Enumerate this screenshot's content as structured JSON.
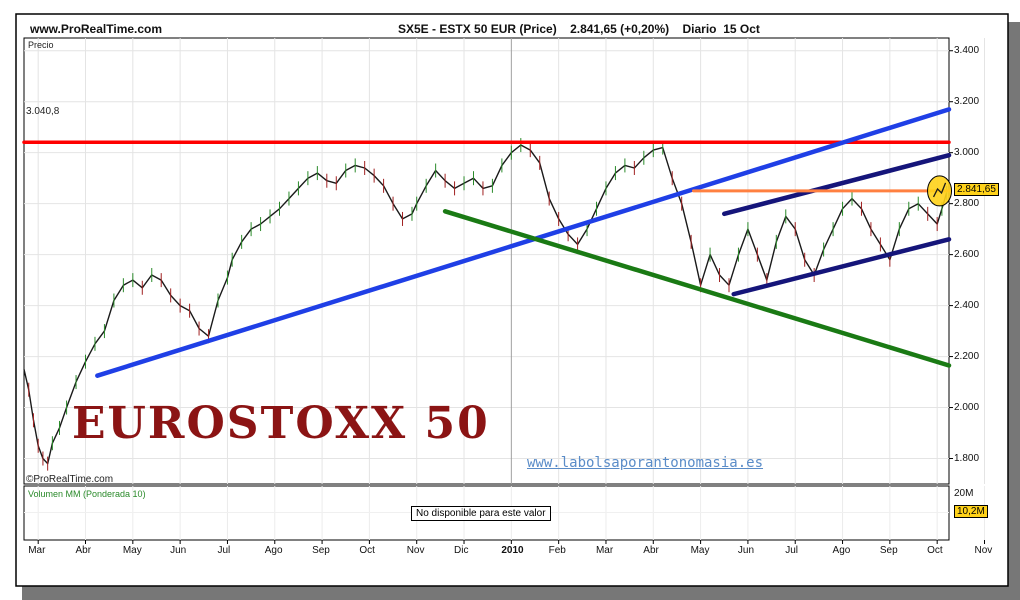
{
  "header": {
    "site": "www.ProRealTime.com",
    "instrument": "SX5E - ESTX 50 EUR (Price)",
    "price_change": "2.841,65 (+0,20%)",
    "timeframe": "Diario",
    "date": "15 Oct"
  },
  "price_panel": {
    "label": "Precio",
    "source_credit": "ProRealTime.com",
    "resistance_label": "3.040,8",
    "last_price_label": "2.841,65"
  },
  "volume_panel": {
    "label": "Volumen MM (Ponderada 10)",
    "not_available": "No disponible para este valor",
    "axis_label": "20M",
    "value_label": "10,2M"
  },
  "overlay": {
    "title": "EUROSTOXX 50",
    "watermark": "www.labolsaporantonomasia.es"
  },
  "colors": {
    "resistance": "#ff0000",
    "uptrend": "#1f3fe6",
    "channel": "#15157a",
    "downtrend": "#1a7a14",
    "level": "#ff8040",
    "highlight": "#ffd21a"
  },
  "chart_data": {
    "type": "line",
    "title": "SX5E - ESTX 50 EUR (Price)",
    "ylabel": "Precio",
    "ylim": [
      1700,
      3450
    ],
    "y_ticks": [
      "3.400",
      "3.200",
      "3.000",
      "2.800",
      "2.600",
      "2.400",
      "2.200",
      "2.000",
      "1.800"
    ],
    "y_tick_values": [
      3400,
      3200,
      3000,
      2800,
      2600,
      2400,
      2200,
      2000,
      1800
    ],
    "x_ticks": [
      "Mar",
      "Abr",
      "May",
      "Jun",
      "Jul",
      "Ago",
      "Sep",
      "Oct",
      "Nov",
      "Dic",
      "2010",
      "Feb",
      "Mar",
      "Abr",
      "May",
      "Jun",
      "Jul",
      "Ago",
      "Sep",
      "Oct",
      "Nov"
    ],
    "x_tick_positions": [
      0,
      1,
      2,
      3,
      4,
      5,
      6,
      7,
      8,
      9,
      10,
      11,
      12,
      13,
      14,
      15,
      16,
      17,
      18,
      19,
      20
    ],
    "x_range": [
      -0.3,
      19.25
    ],
    "series": [
      {
        "x": [
          -0.3,
          -0.2,
          -0.1,
          0.0,
          0.1,
          0.2,
          0.3,
          0.45,
          0.6,
          0.8,
          1.0,
          1.2,
          1.4,
          1.6,
          1.8,
          2.0,
          2.2,
          2.4,
          2.6,
          2.8,
          3.0,
          3.2,
          3.4,
          3.6,
          3.8,
          4.0,
          4.1,
          4.3,
          4.5,
          4.7,
          4.9,
          5.1,
          5.3,
          5.5,
          5.7,
          5.9,
          6.1,
          6.3,
          6.5,
          6.7,
          6.9,
          7.1,
          7.3,
          7.5,
          7.7,
          7.9,
          8.0,
          8.2,
          8.4,
          8.6,
          8.8,
          9.0,
          9.2,
          9.4,
          9.6,
          9.8,
          10.0,
          10.2,
          10.4,
          10.6,
          10.8,
          11.0,
          11.2,
          11.4,
          11.6,
          11.8,
          12.0,
          12.2,
          12.4,
          12.6,
          12.8,
          13.0,
          13.2,
          13.4,
          13.6,
          13.8,
          14.0,
          14.2,
          14.4,
          14.6,
          14.8,
          15.0,
          15.2,
          15.4,
          15.6,
          15.8,
          16.0,
          16.2,
          16.4,
          16.6,
          16.8,
          17.0,
          17.2,
          17.4,
          17.6,
          17.8,
          18.0,
          18.2,
          18.4,
          18.6,
          18.8,
          19.0,
          19.1,
          19.2
        ],
        "values": [
          2150,
          2070,
          1950,
          1850,
          1800,
          1780,
          1860,
          1920,
          2000,
          2100,
          2180,
          2250,
          2300,
          2420,
          2480,
          2500,
          2470,
          2520,
          2500,
          2440,
          2400,
          2380,
          2310,
          2280,
          2420,
          2510,
          2580,
          2650,
          2700,
          2720,
          2750,
          2780,
          2820,
          2860,
          2900,
          2920,
          2890,
          2880,
          2930,
          2950,
          2940,
          2910,
          2870,
          2800,
          2740,
          2760,
          2800,
          2870,
          2930,
          2890,
          2860,
          2880,
          2900,
          2860,
          2870,
          2950,
          3000,
          3030,
          3010,
          2960,
          2820,
          2740,
          2680,
          2640,
          2700,
          2780,
          2860,
          2920,
          2950,
          2940,
          2980,
          3010,
          3020,
          2900,
          2800,
          2650,
          2480,
          2600,
          2520,
          2480,
          2600,
          2700,
          2600,
          2500,
          2650,
          2750,
          2700,
          2580,
          2520,
          2620,
          2700,
          2780,
          2820,
          2780,
          2700,
          2640,
          2580,
          2700,
          2780,
          2800,
          2760,
          2720,
          2780,
          2842
        ]
      }
    ],
    "annotations": [
      {
        "name": "resistance-line",
        "color": "resistance",
        "x": [
          -0.3,
          19.25
        ],
        "y": [
          3040.8,
          3040.8
        ]
      },
      {
        "name": "uptrend-line",
        "color": "uptrend",
        "x": [
          1.25,
          19.25
        ],
        "y": [
          2125,
          3170
        ]
      },
      {
        "name": "downtrend-line",
        "color": "downtrend",
        "x": [
          8.6,
          19.25
        ],
        "y": [
          2770,
          2165
        ]
      },
      {
        "name": "channel-top-line",
        "color": "channel",
        "x": [
          14.5,
          19.25
        ],
        "y": [
          2760,
          2990
        ]
      },
      {
        "name": "channel-bottom-line",
        "color": "channel",
        "x": [
          14.7,
          19.25
        ],
        "y": [
          2445,
          2660
        ]
      },
      {
        "name": "level-line",
        "color": "level",
        "x": [
          13.85,
          19.25
        ],
        "y": [
          2850,
          2850
        ]
      }
    ],
    "highlight_point": {
      "x": 19.05,
      "y": 2850
    },
    "volume": {
      "ylim": [
        0,
        20
      ],
      "value": 10.2,
      "unit": "M"
    }
  }
}
